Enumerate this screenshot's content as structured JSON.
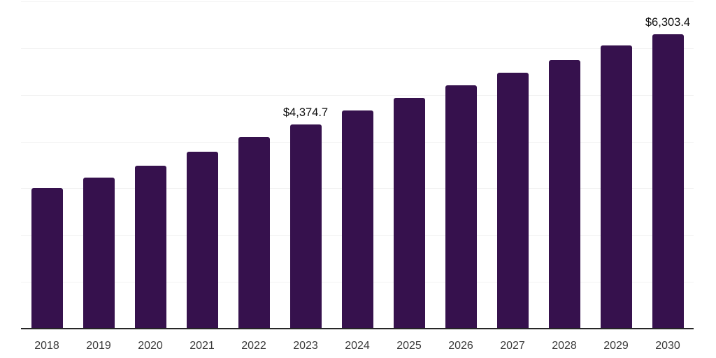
{
  "chart_meta": {
    "bar_color": "#36114D",
    "gridline_color": "#f2f2f2",
    "axis_color": "#262626",
    "tick_label_color": "#3a3a3a",
    "data_label_color": "#101010"
  },
  "chart_data": {
    "type": "bar",
    "title": "",
    "xlabel": "",
    "ylabel": "",
    "categories": [
      "2018",
      "2019",
      "2020",
      "2021",
      "2022",
      "2023",
      "2024",
      "2025",
      "2026",
      "2027",
      "2028",
      "2029",
      "2030"
    ],
    "values": [
      3005,
      3230,
      3485,
      3785,
      4095,
      4374.7,
      4665,
      4935,
      5205,
      5480,
      5745,
      6055,
      6303.4
    ],
    "data_labels": [
      null,
      null,
      null,
      null,
      null,
      "$4,374.7",
      null,
      null,
      null,
      null,
      null,
      null,
      "$6,303.4"
    ],
    "ylim": [
      0,
      7000
    ],
    "grid_step": 1000,
    "grid": "horizontal-only",
    "legend": "none",
    "y_axis_tick_labels": "none"
  }
}
